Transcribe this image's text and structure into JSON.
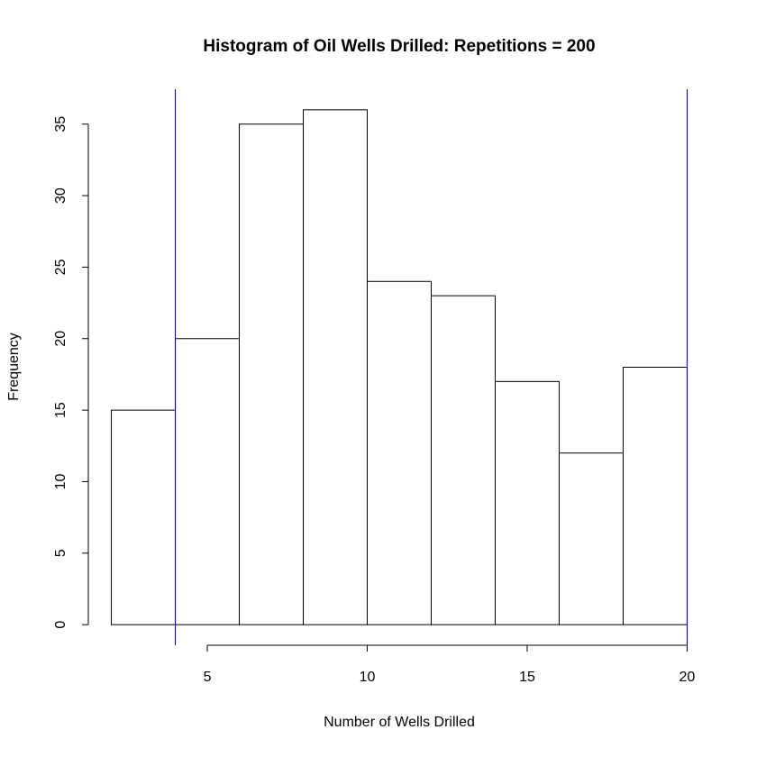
{
  "chart_data": {
    "type": "histogram",
    "title": "Histogram of Oil Wells Drilled: Repetitions = 200",
    "xlabel": "Number of Wells Drilled",
    "ylabel": "Frequency",
    "bins": [
      2,
      4,
      6,
      8,
      10,
      12,
      14,
      16,
      18,
      20
    ],
    "counts": [
      15,
      20,
      35,
      36,
      24,
      23,
      17,
      12,
      18
    ],
    "color": "#ffffff",
    "edgecolor": "#000000",
    "vlines": [
      4,
      20
    ],
    "vline_color": "#000080",
    "xlim": [
      1.28,
      20.72
    ],
    "ylim": [
      -1.44,
      37.44
    ],
    "xticks": [
      5,
      10,
      15,
      20
    ],
    "yticks": [
      0,
      5,
      10,
      15,
      20,
      25,
      30,
      35
    ]
  }
}
